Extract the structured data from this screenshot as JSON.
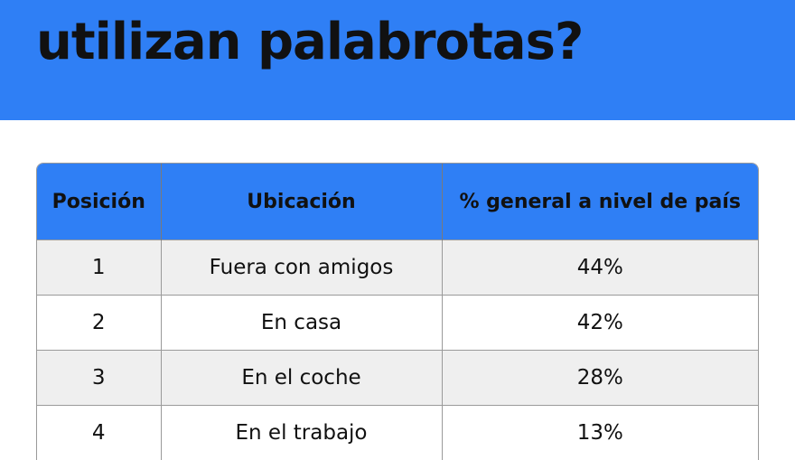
{
  "header": {
    "title": "utilizan palabrotas?"
  },
  "table": {
    "columns": [
      "Posición",
      "Ubicación",
      "% general a nivel de país"
    ],
    "rows": [
      [
        "1",
        "Fuera con amigos",
        "44%"
      ],
      [
        "2",
        "En casa",
        "42%"
      ],
      [
        "3",
        "En el coche",
        "28%"
      ],
      [
        "4",
        "En el trabajo",
        "13%"
      ]
    ]
  }
}
